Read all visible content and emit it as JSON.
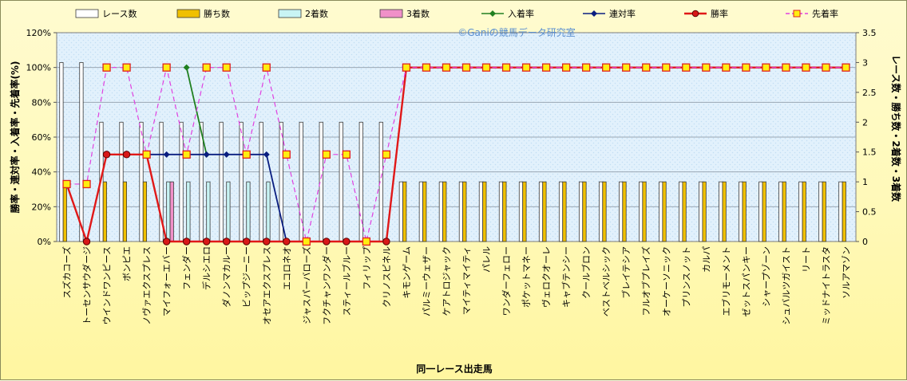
{
  "chart_data": {
    "type": "bar",
    "watermark": "©Ganiの競馬データ研究室",
    "xlabel": "同一レース出走馬",
    "ylabel_left": "勝率・連対率・入着率・先着率(%)",
    "ylabel_right": "レース数・勝ち数・2着数・3着数",
    "ylim_left": [
      0,
      120
    ],
    "ylim_right": [
      0,
      3.5
    ],
    "yticks_left": [
      "0%",
      "20%",
      "40%",
      "60%",
      "80%",
      "100%",
      "120%"
    ],
    "yticks_right": [
      "0",
      "0.5",
      "1",
      "1.5",
      "2",
      "2.5",
      "3",
      "3.5"
    ],
    "categories": [
      "スズカコーズ",
      "トーセンサウダージ",
      "ウインドワンピース",
      "ボンピエ",
      "ノヴァエクスプレス",
      "マイフォーエバー",
      "フェンダー",
      "デルシエロ",
      "ダノンマカルー",
      "ビップジーニー",
      "オセアエクスプレス",
      "エコロネオ",
      "ジャスパーバローズ",
      "フクチャンワンダー",
      "スティールブルー",
      "フィリップ",
      "クリノスピネル",
      "キモンゲーム",
      "パルミーウェザー",
      "ケアトロジャック",
      "マイティマイティ",
      "パレル",
      "ワンダーフェロー",
      "ポケットマネー",
      "ヴェロクオーレ",
      "キャブテンシー",
      "クールブロン",
      "ベストベルシック",
      "ブレイテシア",
      "フルオブプレイズ",
      "オーケーソニック",
      "プリンスノット",
      "カルパ",
      "エブリモーメント",
      "ゼットスパンキー",
      "シャープゾーン",
      "シュバルツガイスト",
      "リート",
      "ミッドナイトラスタ",
      "ソルアマゾン"
    ],
    "series": [
      {
        "name": "レース数",
        "axis": "right",
        "kind": "bar",
        "color": "#ffffff",
        "values": [
          3,
          3,
          2,
          2,
          2,
          2,
          2,
          2,
          2,
          2,
          2,
          2,
          2,
          2,
          2,
          2,
          2,
          1,
          1,
          1,
          1,
          1,
          1,
          1,
          1,
          1,
          1,
          1,
          1,
          1,
          1,
          1,
          1,
          1,
          1,
          1,
          1,
          1,
          1,
          1
        ]
      },
      {
        "name": "勝ち数",
        "axis": "right",
        "kind": "bar",
        "color": "#f0c000",
        "values": [
          1,
          0,
          1,
          1,
          1,
          0,
          0,
          0,
          0,
          0,
          0,
          0,
          0,
          0,
          0,
          0,
          0,
          1,
          1,
          1,
          1,
          1,
          1,
          1,
          1,
          1,
          1,
          1,
          1,
          1,
          1,
          1,
          1,
          1,
          1,
          1,
          1,
          1,
          1,
          1
        ]
      },
      {
        "name": "2着数",
        "axis": "right",
        "kind": "bar",
        "color": "#c8f4f4",
        "values": [
          0,
          0,
          0,
          0,
          0,
          1,
          1,
          1,
          1,
          1,
          1,
          0,
          0,
          0,
          0,
          0,
          0,
          0,
          0,
          0,
          0,
          0,
          0,
          0,
          0,
          0,
          0,
          0,
          0,
          0,
          0,
          0,
          0,
          0,
          0,
          0,
          0,
          0,
          0,
          0
        ]
      },
      {
        "name": "3着数",
        "axis": "right",
        "kind": "bar",
        "color": "#f090c8",
        "values": [
          0,
          0,
          0,
          0,
          0,
          1,
          0,
          0,
          0,
          0,
          0,
          0,
          0,
          0,
          0,
          0,
          0,
          0,
          0,
          0,
          0,
          0,
          0,
          0,
          0,
          0,
          0,
          0,
          0,
          0,
          0,
          0,
          0,
          0,
          0,
          0,
          0,
          0,
          0,
          0
        ]
      },
      {
        "name": "入着率",
        "axis": "left",
        "kind": "line",
        "color": "#208020",
        "values": [
          null,
          null,
          null,
          null,
          null,
          null,
          100,
          50,
          null,
          null,
          null,
          null,
          null,
          null,
          null,
          null,
          null,
          null,
          null,
          null,
          null,
          null,
          null,
          null,
          null,
          null,
          null,
          null,
          null,
          null,
          null,
          null,
          null,
          null,
          null,
          null,
          null,
          null,
          null,
          null
        ]
      },
      {
        "name": "連対率",
        "axis": "left",
        "kind": "line",
        "color": "#0a1e80",
        "values": [
          null,
          null,
          null,
          null,
          50,
          50,
          50,
          50,
          50,
          50,
          50,
          0,
          null,
          null,
          null,
          null,
          null,
          null,
          null,
          null,
          null,
          null,
          null,
          null,
          null,
          null,
          null,
          null,
          null,
          null,
          null,
          null,
          null,
          null,
          null,
          null,
          null,
          null,
          null,
          null
        ]
      },
      {
        "name": "勝率",
        "axis": "left",
        "kind": "line",
        "color": "#e01818",
        "values": [
          33,
          0,
          50,
          50,
          50,
          0,
          0,
          0,
          0,
          0,
          0,
          0,
          0,
          0,
          0,
          0,
          0,
          100,
          100,
          100,
          100,
          100,
          100,
          100,
          100,
          100,
          100,
          100,
          100,
          100,
          100,
          100,
          100,
          100,
          100,
          100,
          100,
          100,
          100,
          100
        ]
      },
      {
        "name": "先着率",
        "axis": "left",
        "kind": "dashed",
        "color": "#e040e0",
        "values": [
          33,
          33,
          100,
          100,
          50,
          100,
          50,
          100,
          100,
          50,
          100,
          50,
          0,
          50,
          50,
          0,
          50,
          100,
          100,
          100,
          100,
          100,
          100,
          100,
          100,
          100,
          100,
          100,
          100,
          100,
          100,
          100,
          100,
          100,
          100,
          100,
          100,
          100,
          100,
          100
        ]
      }
    ]
  }
}
